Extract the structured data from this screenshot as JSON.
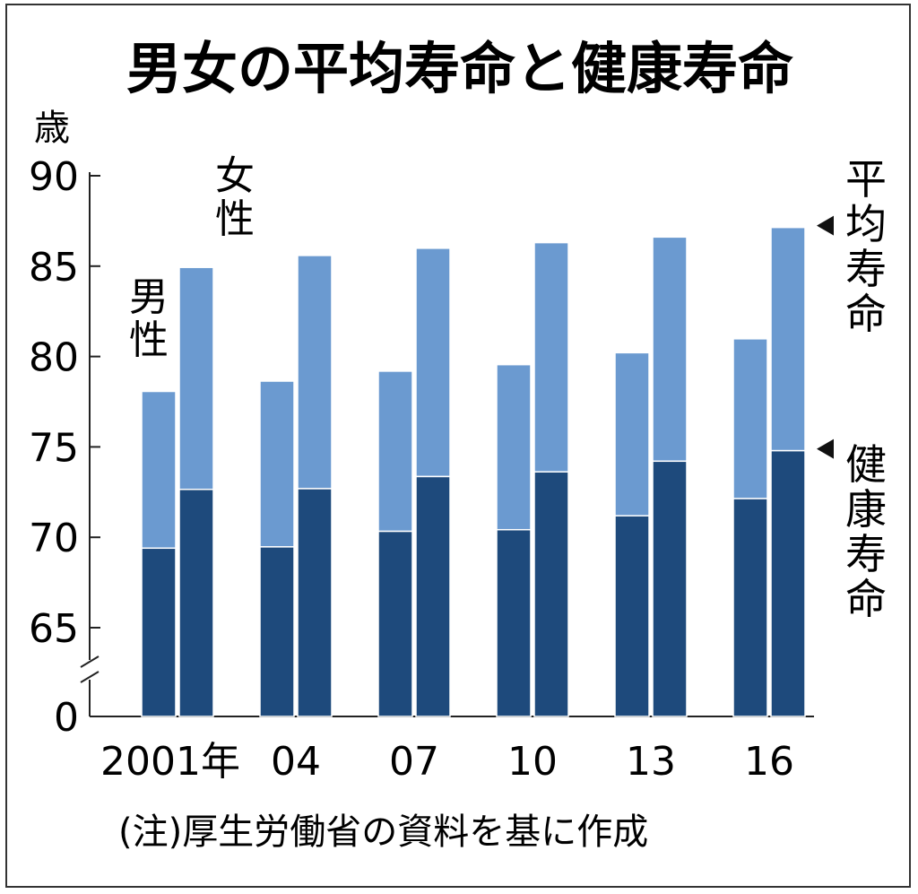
{
  "chart_data": {
    "type": "bar",
    "title": "男女の平均寿命と健康寿命",
    "unit_label": "歳",
    "categories": [
      "2001年",
      "04",
      "07",
      "10",
      "13",
      "16"
    ],
    "y_ticks": [
      "90",
      "85",
      "80",
      "75",
      "70",
      "65",
      "0"
    ],
    "axis_break": true,
    "ylim_visible": [
      65,
      90
    ],
    "series": [
      {
        "name": "男性",
        "label_lines": [
          "男",
          "性"
        ],
        "average_life_expectancy": [
          78.07,
          78.64,
          79.19,
          79.55,
          80.21,
          80.98
        ],
        "healthy_life_expectancy": [
          69.4,
          69.47,
          70.33,
          70.42,
          71.19,
          72.14
        ]
      },
      {
        "name": "女性",
        "label_lines": [
          "女",
          "性"
        ],
        "average_life_expectancy": [
          84.93,
          85.59,
          85.99,
          86.3,
          86.61,
          87.14
        ],
        "healthy_life_expectancy": [
          72.65,
          72.69,
          73.36,
          73.62,
          74.21,
          74.79
        ]
      }
    ],
    "legend_right": [
      {
        "name": "平均寿命",
        "label_lines": [
          "平",
          "均",
          "寿",
          "命"
        ]
      },
      {
        "name": "健康寿命",
        "label_lines": [
          "健",
          "康",
          "寿",
          "命"
        ]
      }
    ],
    "note": "(注)厚生労働省の資料を基に作成",
    "colors": {
      "average": "#6b9ad0",
      "healthy": "#1e4a7c",
      "axis": "#222222"
    }
  }
}
